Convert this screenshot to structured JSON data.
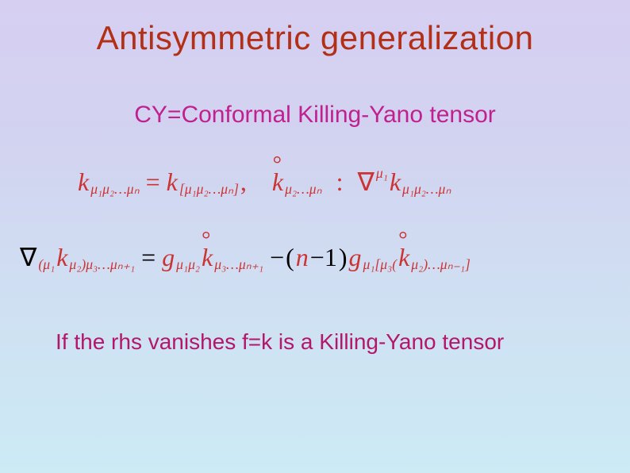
{
  "colors": {
    "title": "#b23018",
    "subtitle": "#c02090",
    "equation": "#cc3333",
    "closing": "#b3176b",
    "nabla_black": "#000000"
  },
  "fonts": {
    "title_size_pt": 32,
    "subtitle_size_pt": 23,
    "equation_size_pt": 24,
    "closing_size_pt": 21,
    "title_family": "Arial",
    "equation_family": "Times New Roman"
  },
  "title": "Antisymmetric generalization",
  "subtitle": "CY=Conformal Killing-Yano tensor",
  "closing": "If the rhs vanishes f=k is a Killing-Yano tensor",
  "eq1": {
    "part1_lhs": "k",
    "part1_lhs_sub": "μ₁μ₂…μₙ",
    "part1_eq": "=",
    "part1_rhs": "k",
    "part1_rhs_sub": "[μ₁μ₂…μₙ]",
    "comma": ",",
    "part2_k": "k",
    "part2_sub": "μ₂…μₙ",
    "colon": ":",
    "part3_nabla": "∇",
    "part3_sup": "μ₁",
    "part3_k": "k",
    "part3_sub": "μ₁μ₂…μₙ"
  },
  "eq2": {
    "nabla": "∇",
    "lhs_sub": "(μ₁",
    "lhs_k": "k",
    "lhs_k_sub": "μ₂)μ₃…μₙ₊₁",
    "eq": "=",
    "g1": "g",
    "g1_sub": "μ₁μ₂",
    "k1": "k",
    "k1_sub": "μ₃…μₙ₊₁",
    "minus": "−",
    "lp": "(",
    "n": "n",
    "m1": "−1",
    "rp": ")",
    "g2": "g",
    "g2_sub": "μ₁[μ₃(",
    "k2": "k",
    "k2_sub": "μ₂)…μₙ₋₁]"
  }
}
